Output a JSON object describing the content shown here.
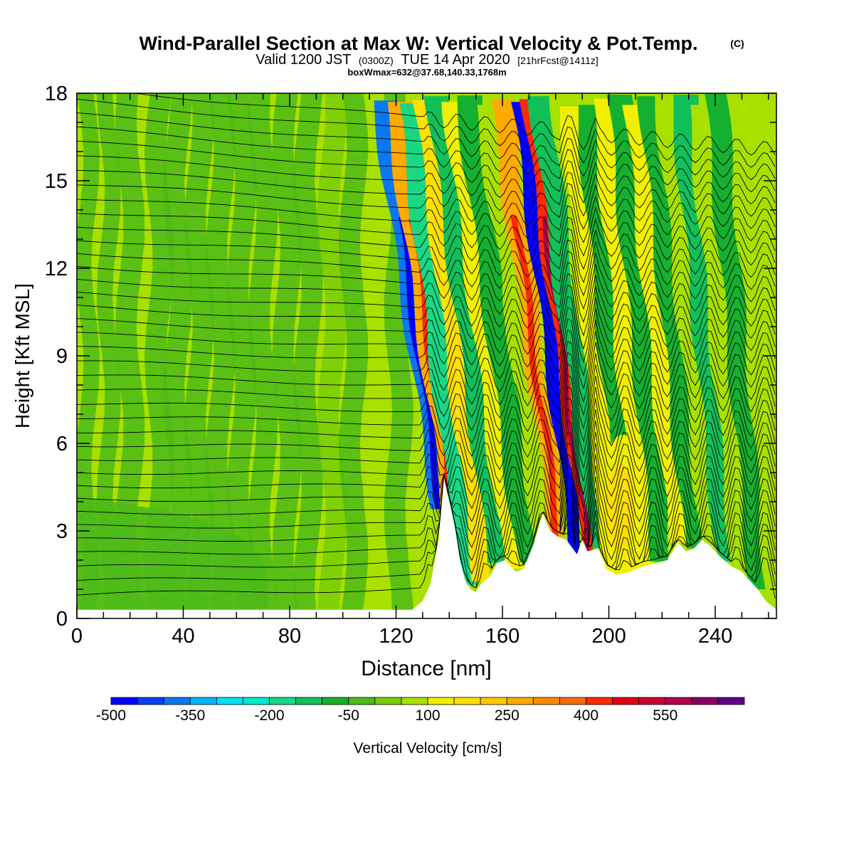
{
  "chart_data": {
    "type": "heatmap",
    "title": "Wind-Parallel Section at Max W: Vertical Velocity & Pot.Temp.",
    "title_mark": "(C)",
    "subtitle": {
      "valid_prefix": "Valid 1200 JST",
      "utc": "(0300Z)",
      "date": "TUE 14 Apr 2020",
      "forecast": "[21hrFcst@1411z]"
    },
    "annotation": "boxWmax=632@37.68,140.33,1768m",
    "xlabel": "Distance [nm]",
    "ylabel": "Height [Kft MSL]",
    "xlim": [
      0,
      263
    ],
    "ylim": [
      0,
      18
    ],
    "x_ticks": [
      0,
      40,
      80,
      120,
      160,
      200,
      240
    ],
    "y_ticks": [
      0,
      3,
      6,
      9,
      12,
      15,
      18
    ],
    "colorbar": {
      "label": "Vertical Velocity [cm/s]",
      "min": -500,
      "max": 650,
      "step": 50,
      "tick_labels": [
        "-500",
        "-350",
        "-200",
        "-50",
        "100",
        "250",
        "400",
        "550"
      ],
      "colors": [
        "#0000ff",
        "#0a3ef5",
        "#0a78f0",
        "#00b4ff",
        "#00e0f0",
        "#00e8c8",
        "#18d884",
        "#12c05a",
        "#16b030",
        "#4cba18",
        "#78cc06",
        "#a8e000",
        "#f0f000",
        "#ffe000",
        "#ffc800",
        "#ffaa00",
        "#ff8c00",
        "#f86a00",
        "#ff2a00",
        "#e00014",
        "#c80030",
        "#b00050",
        "#880060",
        "#600080"
      ]
    },
    "terrain_kft": [
      [
        0,
        0.3
      ],
      [
        126,
        0.3
      ],
      [
        130,
        0.6
      ],
      [
        133,
        1.2
      ],
      [
        136,
        2.7
      ],
      [
        138,
        4.8
      ],
      [
        140,
        4.0
      ],
      [
        142,
        3.2
      ],
      [
        144,
        2.0
      ],
      [
        146,
        1.3
      ],
      [
        148,
        1.0
      ],
      [
        150,
        0.9
      ],
      [
        152,
        1.2
      ],
      [
        155,
        1.4
      ],
      [
        158,
        1.9
      ],
      [
        161,
        2.0
      ],
      [
        165,
        1.6
      ],
      [
        168,
        1.7
      ],
      [
        172,
        2.6
      ],
      [
        175,
        3.6
      ],
      [
        178,
        3.0
      ],
      [
        181,
        2.8
      ],
      [
        184,
        2.7
      ],
      [
        188,
        2.2
      ],
      [
        190,
        2.7
      ],
      [
        192,
        2.3
      ],
      [
        196,
        2.4
      ],
      [
        199,
        1.7
      ],
      [
        203,
        1.5
      ],
      [
        208,
        1.6
      ],
      [
        213,
        1.8
      ],
      [
        218,
        1.9
      ],
      [
        222,
        2.0
      ],
      [
        226,
        2.6
      ],
      [
        229,
        2.3
      ],
      [
        232,
        2.4
      ],
      [
        235,
        2.7
      ],
      [
        238,
        2.5
      ],
      [
        242,
        2.1
      ],
      [
        246,
        1.8
      ],
      [
        250,
        1.6
      ],
      [
        253,
        1.3
      ],
      [
        256,
        1.0
      ],
      [
        259,
        0.6
      ],
      [
        263,
        0.3
      ]
    ],
    "wave_bands": [
      {
        "x": 137,
        "w": 3.2,
        "value": -380
      },
      {
        "x": 142,
        "w": 3.5,
        "value": 280
      },
      {
        "x": 147,
        "w": 3.5,
        "value": -160
      },
      {
        "x": 153,
        "w": 3.5,
        "value": 160
      },
      {
        "x": 158,
        "w": 3.5,
        "value": -110
      },
      {
        "x": 164,
        "w": 3.5,
        "value": 110
      },
      {
        "x": 169,
        "w": 3.5,
        "value": -90
      },
      {
        "x": 175,
        "w": 3.0,
        "value": 90
      },
      {
        "x": 181,
        "w": 3.0,
        "value": 270
      },
      {
        "x": 188,
        "w": 2.2,
        "value": -520
      },
      {
        "x": 192,
        "w": 2.2,
        "value": 440
      },
      {
        "x": 196,
        "w": 3.0,
        "value": -130
      },
      {
        "x": 202,
        "w": 3.5,
        "value": 110
      },
      {
        "x": 208,
        "w": 3.5,
        "value": -100
      },
      {
        "x": 214,
        "w": 3.5,
        "value": 110
      },
      {
        "x": 220,
        "w": 3.5,
        "value": -100
      },
      {
        "x": 226,
        "w": 3.5,
        "value": 100
      },
      {
        "x": 232,
        "w": 3.5,
        "value": -90
      },
      {
        "x": 238,
        "w": 3.5,
        "value": 90
      },
      {
        "x": 244,
        "w": 3.5,
        "value": -110
      },
      {
        "x": 250,
        "w": 3.5,
        "value": 80
      },
      {
        "x": 256,
        "w": 3.0,
        "value": -70
      }
    ],
    "warm_blob": {
      "x": 205,
      "y": 3.5,
      "rx": 9,
      "ry": 2.8,
      "value": 180
    },
    "west_bands": [
      {
        "x": 4,
        "w": 3,
        "value": -10
      },
      {
        "x": 12,
        "w": 3,
        "value": -40
      },
      {
        "x": 20,
        "w": 4,
        "value": -10
      },
      {
        "x": 31,
        "w": 4,
        "value": -40
      },
      {
        "x": 38,
        "w": 4,
        "value": -10
      },
      {
        "x": 46,
        "w": 4,
        "value": -40
      },
      {
        "x": 54,
        "w": 4,
        "value": -10
      },
      {
        "x": 62,
        "w": 4,
        "value": -40
      },
      {
        "x": 70,
        "w": 4,
        "value": -10
      },
      {
        "x": 79,
        "w": 4,
        "value": -40
      },
      {
        "x": 87,
        "w": 4,
        "value": -10
      },
      {
        "x": 96,
        "w": 4,
        "value": 40
      },
      {
        "x": 104,
        "w": 4,
        "value": -20
      },
      {
        "x": 113,
        "w": 4,
        "value": 50
      },
      {
        "x": 121,
        "w": 4,
        "value": -20
      },
      {
        "x": 129,
        "w": 3,
        "value": 80
      }
    ],
    "isentrope_count": 38
  }
}
